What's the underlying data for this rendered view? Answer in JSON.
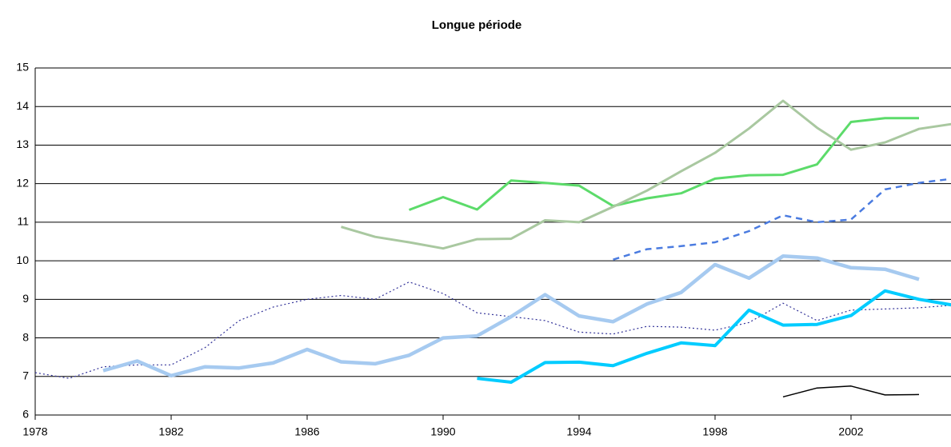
{
  "chart_data": {
    "type": "line",
    "title": "Longue période",
    "x": [
      1978,
      1979,
      1980,
      1981,
      1982,
      1983,
      1984,
      1985,
      1986,
      1987,
      1988,
      1989,
      1990,
      1991,
      1992,
      1993,
      1994,
      1995,
      1996,
      1997,
      1998,
      1999,
      2000,
      2001,
      2002,
      2003,
      2004,
      2005
    ],
    "series": [
      {
        "color": "#333399",
        "width": 1.2,
        "dash": "dotted",
        "values": [
          7.1,
          6.95,
          7.25,
          7.3,
          7.3,
          7.75,
          8.45,
          8.8,
          9.0,
          9.1,
          9.0,
          9.45,
          9.15,
          8.65,
          8.55,
          8.45,
          8.15,
          8.1,
          8.3,
          8.28,
          8.2,
          8.4,
          8.9,
          8.45,
          8.72,
          8.75,
          8.78,
          8.85
        ]
      },
      {
        "color": "#a6caf0",
        "width": 4.5,
        "dash": "solid",
        "values": [
          null,
          null,
          7.15,
          7.4,
          7.02,
          7.25,
          7.22,
          7.35,
          7.7,
          7.38,
          7.33,
          7.55,
          8.0,
          8.05,
          8.55,
          9.12,
          8.57,
          8.42,
          8.88,
          9.18,
          9.9,
          9.55,
          10.12,
          10.07,
          9.82,
          9.78,
          9.52,
          null
        ]
      },
      {
        "color": "#00ccff",
        "width": 4,
        "dash": "solid",
        "values": [
          null,
          null,
          null,
          null,
          null,
          null,
          null,
          null,
          null,
          null,
          null,
          null,
          null,
          6.95,
          6.85,
          7.36,
          7.37,
          7.28,
          7.6,
          7.87,
          7.8,
          8.72,
          8.33,
          8.35,
          8.58,
          9.22,
          9.0,
          8.85
        ]
      },
      {
        "color": "#5cdb6a",
        "width": 3,
        "dash": "solid",
        "values": [
          null,
          null,
          null,
          null,
          null,
          null,
          null,
          null,
          null,
          null,
          null,
          11.32,
          11.65,
          11.33,
          12.08,
          12.02,
          11.95,
          11.42,
          11.62,
          11.75,
          12.13,
          12.22,
          12.23,
          12.5,
          13.6,
          13.7,
          13.7,
          null
        ]
      },
      {
        "color": "#a9c8a0",
        "width": 3,
        "dash": "solid",
        "values": [
          null,
          null,
          null,
          null,
          null,
          null,
          null,
          null,
          null,
          10.88,
          10.62,
          10.48,
          10.32,
          10.56,
          10.57,
          11.05,
          11.0,
          11.4,
          11.82,
          12.32,
          12.8,
          13.43,
          14.15,
          13.45,
          12.88,
          13.07,
          13.42,
          13.55
        ]
      },
      {
        "color": "#4a7be0",
        "width": 2.5,
        "dash": "dashed",
        "values": [
          null,
          null,
          null,
          null,
          null,
          null,
          null,
          null,
          null,
          null,
          null,
          null,
          null,
          null,
          null,
          null,
          null,
          10.03,
          10.3,
          10.38,
          10.48,
          10.77,
          11.18,
          11.0,
          11.07,
          11.85,
          12.02,
          12.13
        ]
      },
      {
        "color": "#000000",
        "width": 1.5,
        "dash": "solid",
        "values": [
          null,
          null,
          null,
          null,
          null,
          null,
          null,
          null,
          null,
          null,
          null,
          null,
          null,
          null,
          null,
          null,
          null,
          null,
          null,
          null,
          null,
          null,
          6.47,
          6.7,
          6.75,
          6.52,
          6.53,
          null
        ]
      }
    ],
    "xlim": [
      1978,
      2005
    ],
    "xticks": [
      1978,
      1982,
      1986,
      1990,
      1994,
      1998,
      2002
    ],
    "ylim": [
      6,
      15
    ],
    "yticks": [
      6,
      7,
      8,
      9,
      10,
      11,
      12,
      13,
      14,
      15
    ],
    "grid": true
  }
}
